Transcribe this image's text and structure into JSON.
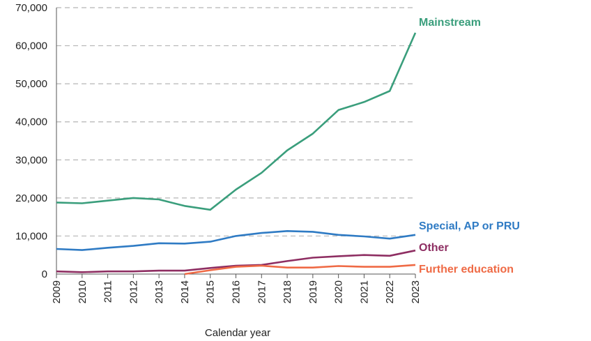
{
  "chart_data": {
    "type": "line",
    "xlabel": "Calendar year",
    "ylabel": "",
    "ylim": [
      0,
      70000
    ],
    "yticks": [
      0,
      10000,
      20000,
      30000,
      40000,
      50000,
      60000,
      70000
    ],
    "ytick_labels": [
      "0",
      "10,000",
      "20,000",
      "30,000",
      "40,000",
      "50,000",
      "60,000",
      "70,000"
    ],
    "x": [
      "2009",
      "2010",
      "2011",
      "2012",
      "2013",
      "2014",
      "2015",
      "2016",
      "2017",
      "2018",
      "2019",
      "2020",
      "2021",
      "2022",
      "2023"
    ],
    "grid": "horizontal dashed",
    "legend": "direct labels at line ends",
    "series": [
      {
        "name": "Mainstream",
        "color": "#3a9e7c",
        "values": [
          18800,
          18600,
          19300,
          20000,
          19600,
          17900,
          16900,
          22200,
          26600,
          32500,
          36900,
          43100,
          45200,
          48100,
          63400
        ]
      },
      {
        "name": "Special, AP or PRU",
        "color": "#2f7bc4",
        "values": [
          6600,
          6300,
          6900,
          7400,
          8100,
          8000,
          8500,
          10000,
          10800,
          11300,
          11100,
          10300,
          9900,
          9300,
          10300
        ]
      },
      {
        "name": "Other",
        "color": "#8e2e62",
        "values": [
          700,
          500,
          700,
          700,
          900,
          900,
          1600,
          2200,
          2400,
          3400,
          4300,
          4700,
          5000,
          4800,
          6200
        ]
      },
      {
        "name": "Further education",
        "color": "#ef6a45",
        "values": [
          null,
          null,
          null,
          null,
          null,
          0,
          1000,
          1900,
          2200,
          1700,
          1700,
          2100,
          1900,
          1900,
          2400
        ]
      }
    ]
  }
}
